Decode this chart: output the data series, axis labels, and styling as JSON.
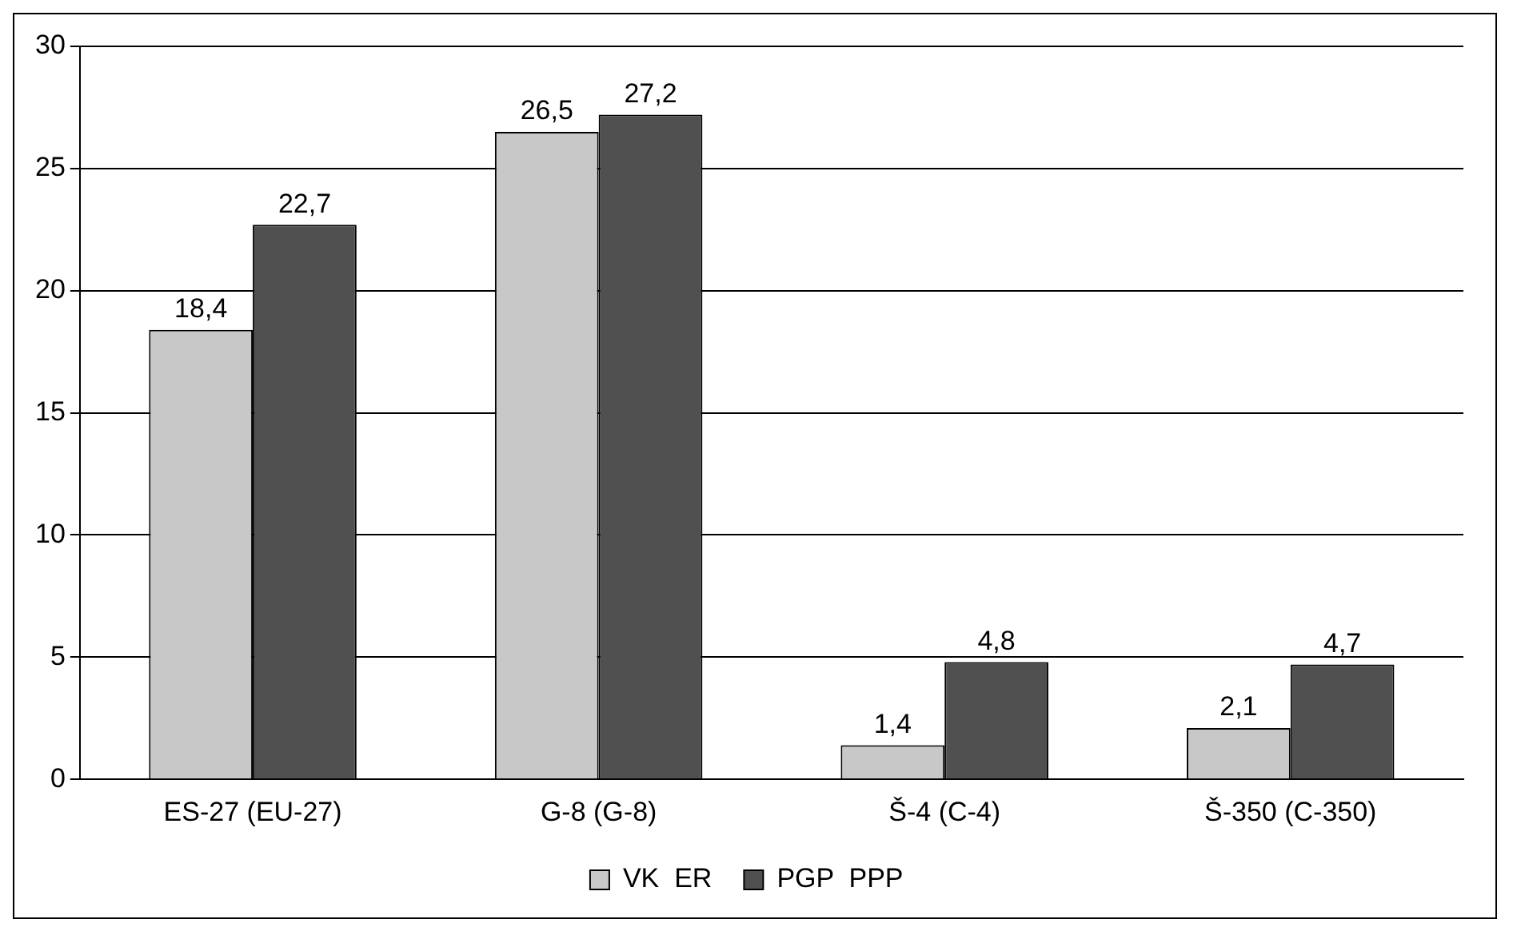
{
  "chart_data": {
    "type": "bar",
    "categories": [
      "ES-27 (EU-27)",
      "G-8 (G-8)",
      "Š-4 (C-4)",
      "Š-350 (C-350)"
    ],
    "series": [
      {
        "name": "VK  ER",
        "color": "#c8c8c8",
        "values": [
          18.4,
          26.5,
          1.4,
          2.1
        ],
        "value_labels": [
          "18,4",
          "26,5",
          "1,4",
          "2,1"
        ]
      },
      {
        "name": "PGP  PPP",
        "color": "#505050",
        "values": [
          22.7,
          27.2,
          4.8,
          4.7
        ],
        "value_labels": [
          "22,7",
          "27,2",
          "4,8",
          "4,7"
        ]
      }
    ],
    "ylim": [
      0,
      30
    ],
    "yticks": [
      0,
      5,
      10,
      15,
      20,
      25,
      30
    ],
    "grid": "y",
    "legend": "bottom"
  }
}
